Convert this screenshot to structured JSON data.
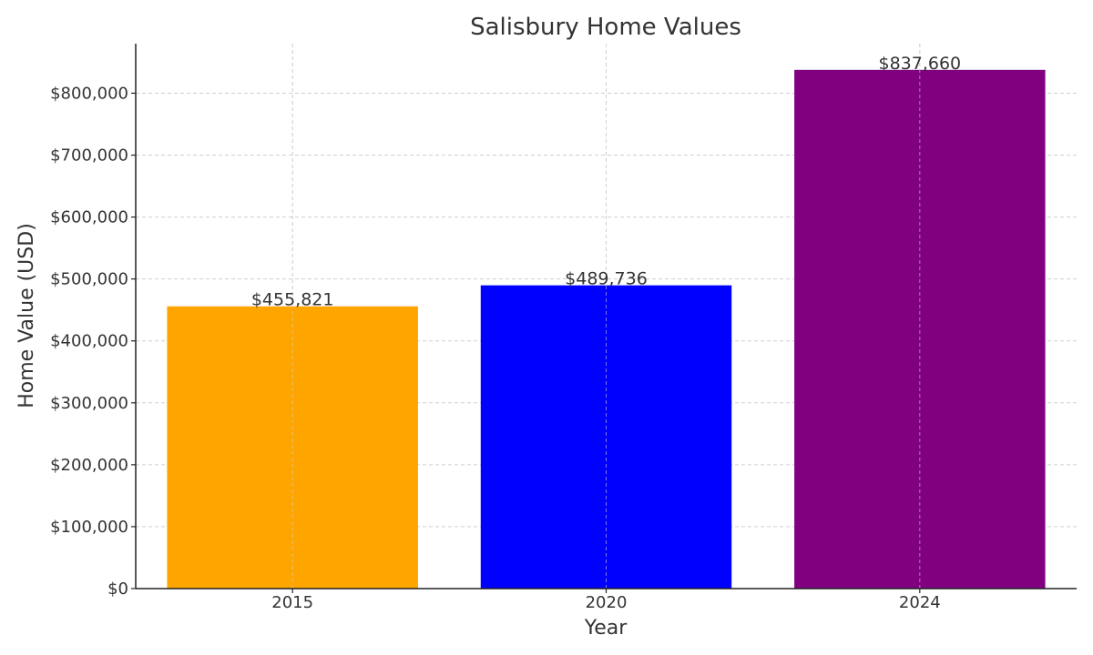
{
  "chart_data": {
    "type": "bar",
    "title": "Salisbury Home Values",
    "xlabel": "Year",
    "ylabel": "Home Value (USD)",
    "categories": [
      "2015",
      "2020",
      "2024"
    ],
    "values": [
      455821,
      489736,
      837660
    ],
    "value_labels": [
      "$455,821",
      "$489,736",
      "$837,660"
    ],
    "colors": [
      "#FFA500",
      "#0000FF",
      "#800080"
    ],
    "ylim": [
      0,
      880000
    ],
    "yticks": [
      0,
      100000,
      200000,
      300000,
      400000,
      500000,
      600000,
      700000,
      800000
    ],
    "ytick_labels": [
      "$0",
      "$100,000",
      "$200,000",
      "$300,000",
      "$400,000",
      "$500,000",
      "$600,000",
      "$700,000",
      "$800,000"
    ],
    "grid": true
  }
}
